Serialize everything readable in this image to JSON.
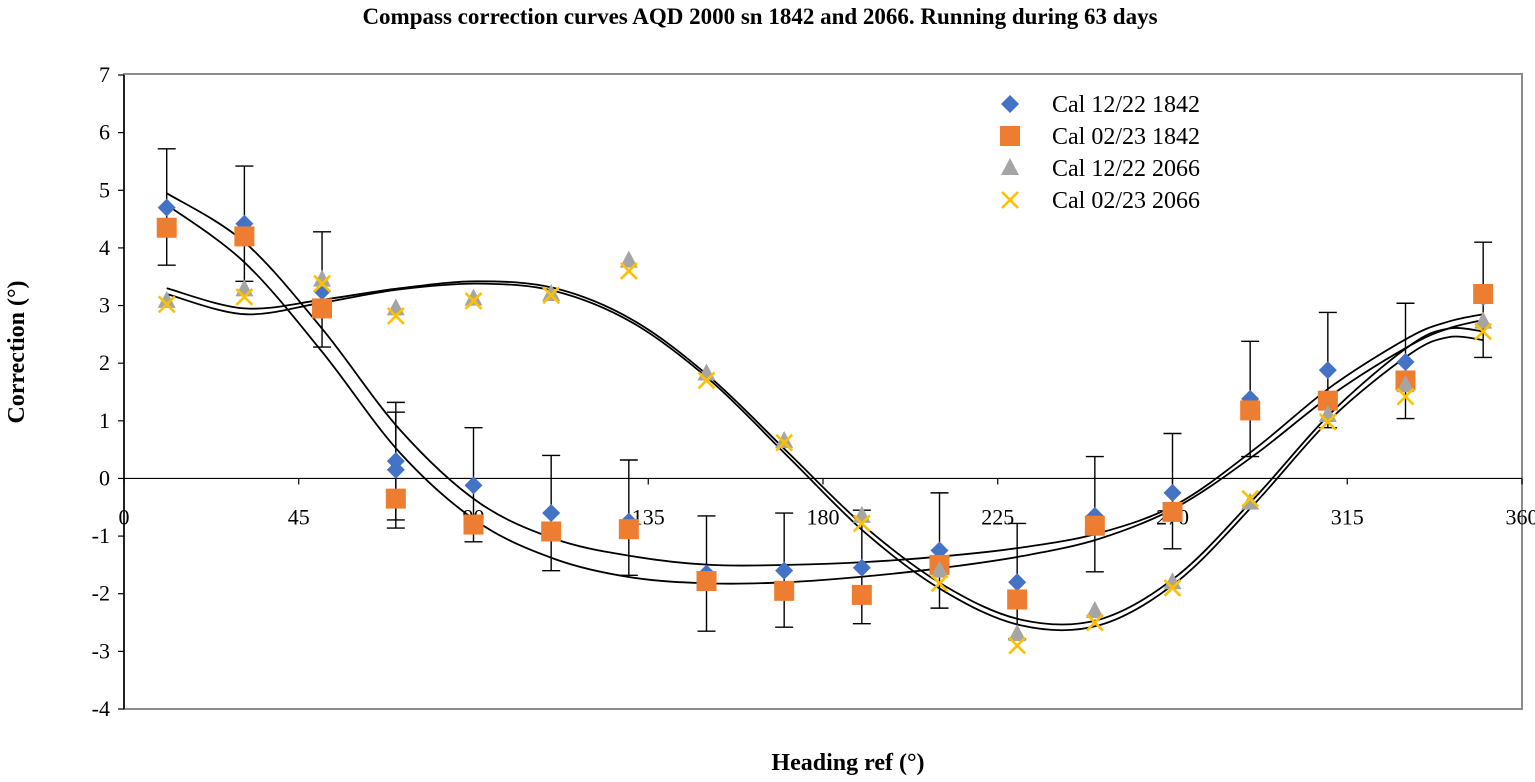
{
  "chart_data": {
    "type": "scatter",
    "title": "Compass correction curves AQD 2000 sn 1842 and 2066. Running during 63 days",
    "xlabel": "Heading ref (°)",
    "ylabel": "Correction (°)",
    "xlim": [
      0,
      360
    ],
    "ylim": [
      -4,
      7
    ],
    "x_ticks": [
      {
        "value": 0,
        "label": "0"
      },
      {
        "value": 45,
        "label": "45"
      },
      {
        "value": 90,
        "label": "90"
      },
      {
        "value": 135,
        "label": "135"
      },
      {
        "value": 180,
        "label": "180"
      },
      {
        "value": 225,
        "label": "225"
      },
      {
        "value": 270,
        "label": "270"
      },
      {
        "value": 315,
        "label": "315"
      },
      {
        "value": 360,
        "label": "360"
      }
    ],
    "y_ticks": [
      {
        "value": 7,
        "label": "7"
      },
      {
        "value": 6,
        "label": "6"
      },
      {
        "value": 5,
        "label": "5"
      },
      {
        "value": 4,
        "label": "4"
      },
      {
        "value": 3,
        "label": "3"
      },
      {
        "value": 2,
        "label": "2"
      },
      {
        "value": 1,
        "label": "1"
      },
      {
        "value": 0,
        "label": "0"
      },
      {
        "value": -1,
        "label": "-1"
      },
      {
        "value": -2,
        "label": "-2"
      },
      {
        "value": -3,
        "label": "-3"
      },
      {
        "value": -4,
        "label": "-4"
      }
    ],
    "grid": false,
    "legend_position": "top-right",
    "series": [
      {
        "name": "Cal 12/22 1842",
        "marker": "diamond",
        "color": "#4472C4",
        "x": [
          11,
          31,
          51,
          70,
          70,
          90,
          110,
          130,
          150,
          170,
          190,
          210,
          230,
          250,
          270,
          290,
          310,
          330,
          350
        ],
        "y": [
          4.7,
          4.42,
          3.25,
          0.3,
          0.15,
          -0.12,
          -0.6,
          -0.75,
          -1.65,
          -1.6,
          -1.55,
          -1.25,
          -1.8,
          -0.65,
          -0.25,
          1.38,
          1.88,
          2.02,
          3.15
        ]
      },
      {
        "name": "Cal 02/23 1842",
        "marker": "square",
        "color": "#ED7D31",
        "x": [
          11,
          31,
          51,
          70,
          90,
          110,
          130,
          150,
          170,
          190,
          210,
          230,
          250,
          270,
          290,
          310,
          330,
          350
        ],
        "y": [
          4.35,
          4.2,
          2.95,
          -0.35,
          -0.8,
          -0.92,
          -0.88,
          -1.78,
          -1.95,
          -2.02,
          -1.5,
          -2.1,
          -0.82,
          -0.58,
          1.18,
          1.35,
          1.7,
          3.2
        ]
      },
      {
        "name": "Cal 12/22 2066",
        "marker": "triangle",
        "color": "#A5A5A5",
        "x": [
          11,
          31,
          51,
          70,
          90,
          110,
          130,
          150,
          170,
          190,
          210,
          230,
          250,
          270,
          290,
          310,
          330,
          350
        ],
        "y": [
          3.08,
          3.28,
          3.45,
          2.95,
          3.12,
          3.2,
          3.78,
          1.82,
          0.65,
          -0.65,
          -1.6,
          -2.7,
          -2.3,
          -1.8,
          -0.42,
          1.1,
          1.62,
          2.72
        ]
      },
      {
        "name": "Cal 02/23 2066",
        "marker": "x",
        "color": "#FFC000",
        "x": [
          11,
          31,
          51,
          70,
          90,
          110,
          130,
          150,
          170,
          190,
          210,
          230,
          250,
          270,
          290,
          310,
          330,
          350
        ],
        "y": [
          3.02,
          3.15,
          3.38,
          2.82,
          3.08,
          3.18,
          3.6,
          1.7,
          0.62,
          -0.78,
          -1.82,
          -2.9,
          -2.5,
          -1.9,
          -0.35,
          0.98,
          1.42,
          2.55
        ]
      }
    ],
    "error_bars": [
      {
        "x": 11,
        "upper": 5.72,
        "lower": 3.7
      },
      {
        "x": 31,
        "upper": 5.42,
        "lower": 3.42
      },
      {
        "x": 51,
        "upper": 4.28,
        "lower": 2.28
      },
      {
        "x": 70,
        "upper": 1.32,
        "lower": -0.86
      },
      {
        "x": 70,
        "upper": 1.15,
        "lower": -0.72
      },
      {
        "x": 90,
        "upper": 0.88,
        "lower": -1.1
      },
      {
        "x": 110,
        "upper": 0.4,
        "lower": -1.6
      },
      {
        "x": 130,
        "upper": 0.32,
        "lower": -1.68
      },
      {
        "x": 150,
        "upper": -0.65,
        "lower": -2.65
      },
      {
        "x": 170,
        "upper": -0.6,
        "lower": -2.58
      },
      {
        "x": 190,
        "upper": -0.55,
        "lower": -2.52
      },
      {
        "x": 210,
        "upper": -0.25,
        "lower": -2.25
      },
      {
        "x": 230,
        "upper": -0.78,
        "lower": -2.78
      },
      {
        "x": 250,
        "upper": 0.38,
        "lower": -1.62
      },
      {
        "x": 270,
        "upper": 0.78,
        "lower": -1.22
      },
      {
        "x": 290,
        "upper": 2.38,
        "lower": 0.38
      },
      {
        "x": 310,
        "upper": 2.88,
        "lower": 0.88
      },
      {
        "x": 330,
        "upper": 3.04,
        "lower": 1.04
      },
      {
        "x": 350,
        "upper": 4.1,
        "lower": 2.1
      }
    ],
    "fit_curves": [
      {
        "name": "fit-1842-a",
        "x": [
          11,
          31,
          51,
          71,
          91,
          111,
          131,
          151,
          171,
          191,
          211,
          231,
          251,
          271,
          291,
          311,
          331,
          341,
          350
        ],
        "y": [
          4.95,
          4.1,
          2.6,
          0.85,
          -0.4,
          -1.05,
          -1.35,
          -1.5,
          -1.5,
          -1.45,
          -1.35,
          -1.2,
          -0.95,
          -0.45,
          0.5,
          1.6,
          2.45,
          2.72,
          2.85
        ]
      },
      {
        "name": "fit-1842-b",
        "x": [
          11,
          31,
          51,
          71,
          91,
          111,
          131,
          151,
          171,
          191,
          211,
          231,
          251,
          271,
          291,
          311,
          331,
          341,
          350
        ],
        "y": [
          4.75,
          3.75,
          2.2,
          0.45,
          -0.75,
          -1.4,
          -1.72,
          -1.82,
          -1.8,
          -1.7,
          -1.55,
          -1.35,
          -1.05,
          -0.5,
          0.4,
          1.45,
          2.3,
          2.6,
          2.75
        ]
      },
      {
        "name": "fit-2066-a",
        "x": [
          11,
          31,
          51,
          71,
          91,
          111,
          131,
          151,
          171,
          191,
          211,
          231,
          251,
          271,
          291,
          311,
          331,
          341,
          350
        ],
        "y": [
          3.3,
          2.95,
          3.1,
          3.3,
          3.42,
          3.3,
          2.75,
          1.75,
          0.45,
          -0.85,
          -1.85,
          -2.45,
          -2.45,
          -1.7,
          -0.35,
          1.15,
          2.3,
          2.6,
          2.55
        ]
      },
      {
        "name": "fit-2066-b",
        "x": [
          11,
          31,
          51,
          71,
          91,
          111,
          131,
          151,
          171,
          191,
          211,
          231,
          251,
          271,
          291,
          311,
          331,
          341,
          350
        ],
        "y": [
          3.2,
          2.85,
          3.05,
          3.28,
          3.38,
          3.25,
          2.7,
          1.7,
          0.38,
          -0.95,
          -1.95,
          -2.55,
          -2.55,
          -1.8,
          -0.45,
          1.05,
          2.15,
          2.45,
          2.4
        ]
      }
    ]
  }
}
